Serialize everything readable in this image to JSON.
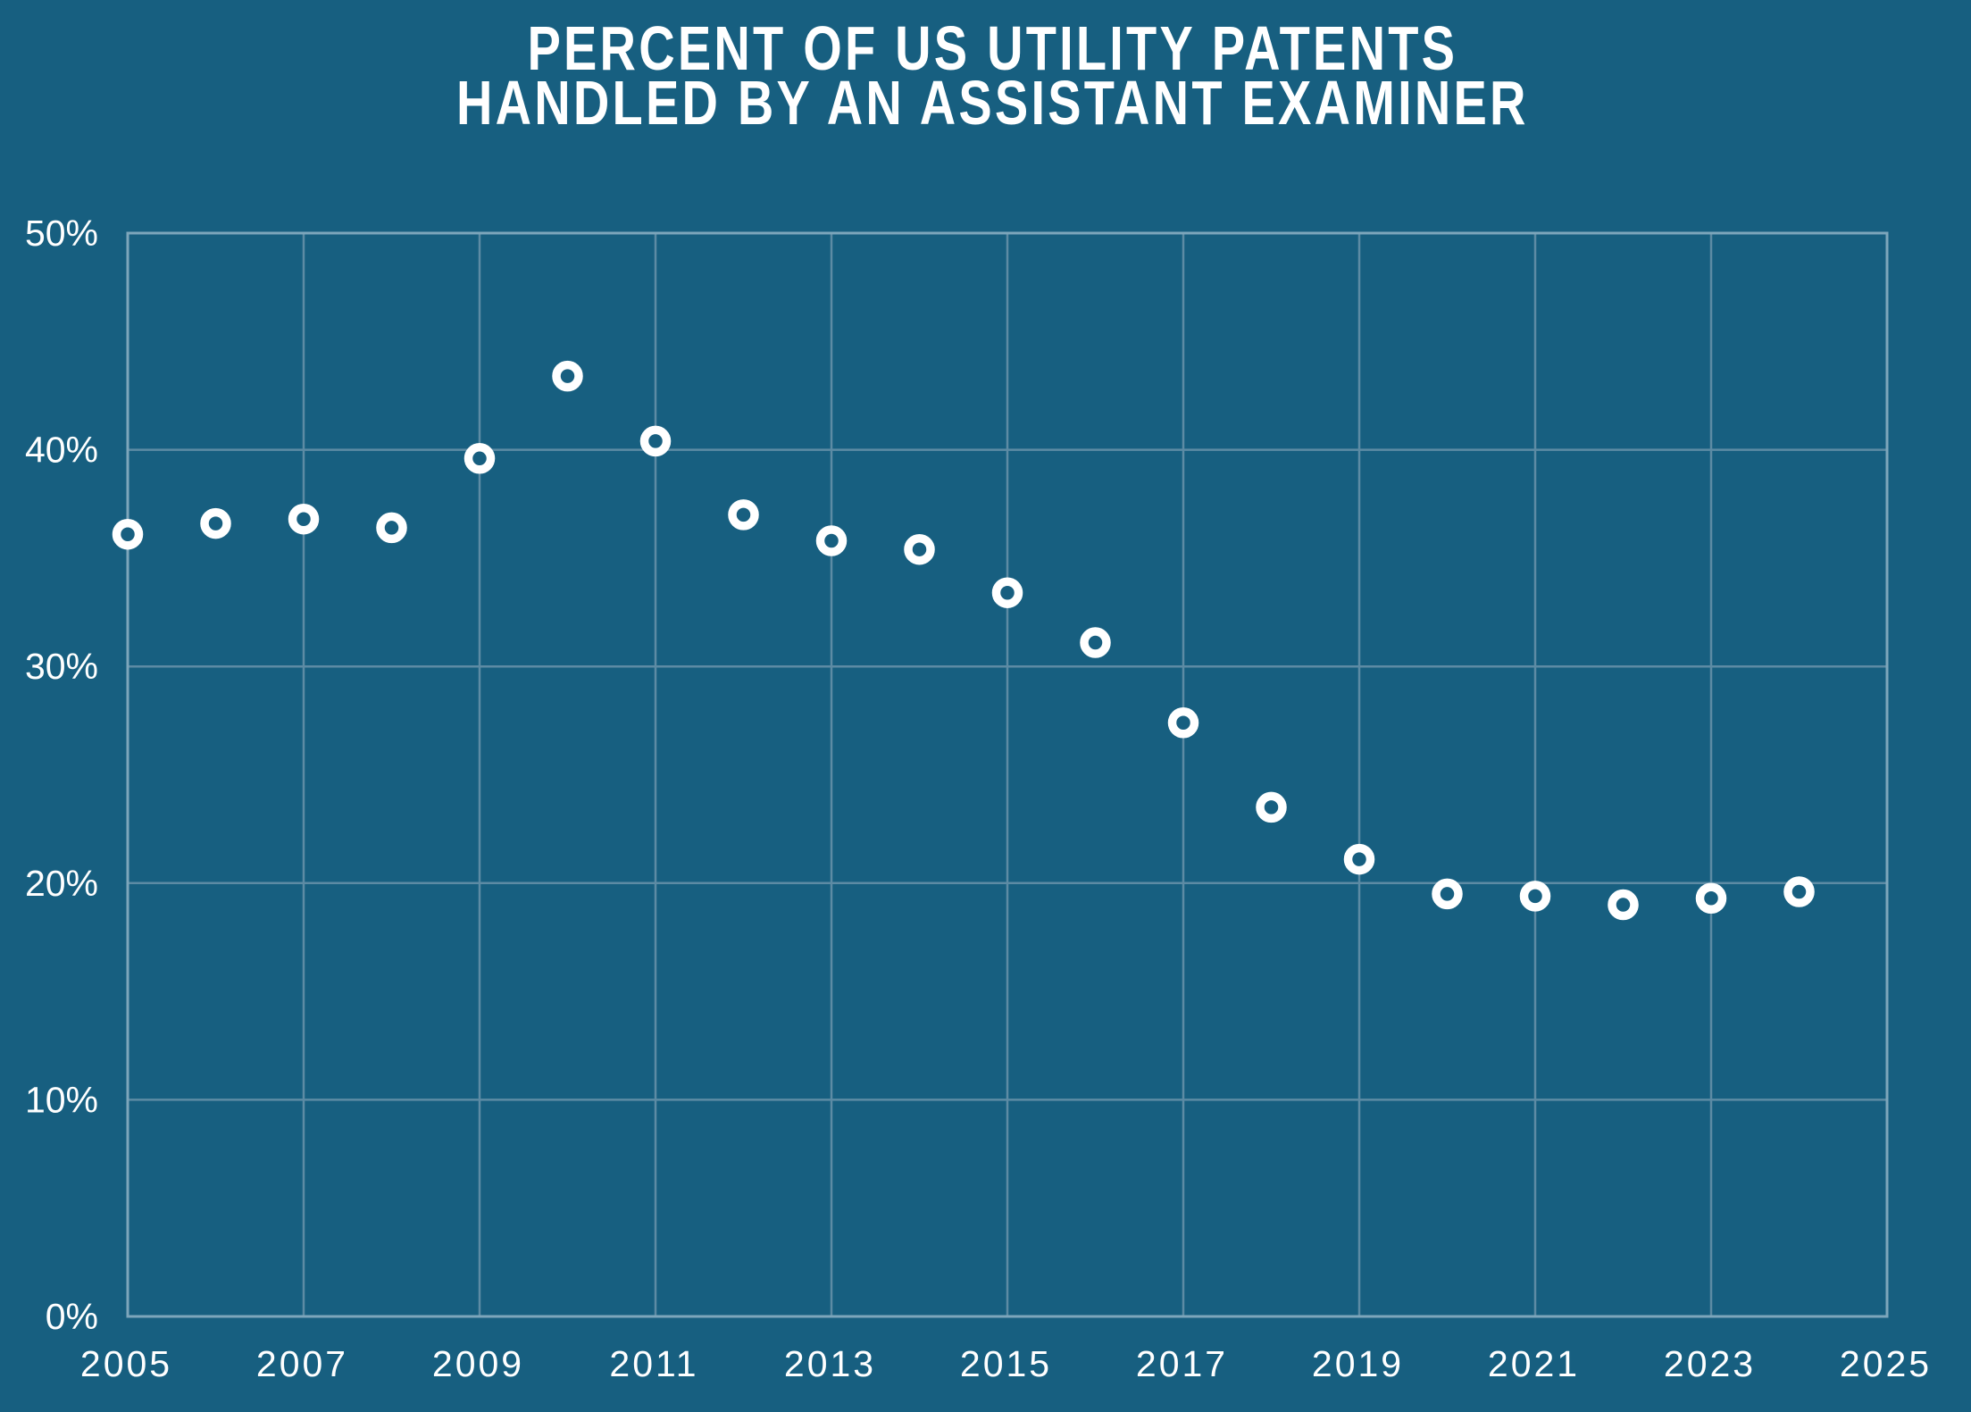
{
  "title": {
    "line1": "PERCENT OF US UTILITY PATENTS",
    "line2": "HANDLED BY AN ASSISTANT EXAMINER"
  },
  "colors": {
    "background": "#175f80",
    "gridline": "#5d8ba4",
    "border": "#7da6bb",
    "text": "#ffffff",
    "marker_stroke": "#ffffff",
    "marker_fill": "#175f80"
  },
  "chart_data": {
    "type": "scatter",
    "title": "PERCENT OF US UTILITY PATENTS HANDLED BY AN ASSISTANT EXAMINER",
    "xlabel": "",
    "ylabel": "",
    "x": [
      2005,
      2006,
      2007,
      2008,
      2009,
      2010,
      2011,
      2012,
      2013,
      2014,
      2015,
      2016,
      2017,
      2018,
      2019,
      2020,
      2021,
      2022,
      2023,
      2024
    ],
    "values": [
      36.1,
      36.6,
      36.8,
      36.4,
      39.6,
      43.4,
      40.4,
      37.0,
      35.8,
      35.4,
      33.4,
      31.1,
      27.4,
      23.5,
      21.1,
      19.5,
      19.4,
      19.0,
      19.3,
      19.6
    ],
    "xlim": [
      2005,
      2025
    ],
    "ylim": [
      0,
      50
    ],
    "x_ticks": [
      2005,
      2007,
      2009,
      2011,
      2013,
      2015,
      2017,
      2019,
      2021,
      2023,
      2025
    ],
    "y_ticks": [
      0,
      10,
      20,
      30,
      40,
      50
    ],
    "x_tick_labels": [
      "2005",
      "2007",
      "2009",
      "2011",
      "2013",
      "2015",
      "2017",
      "2019",
      "2021",
      "2023",
      "2025"
    ],
    "y_tick_labels": [
      "0%",
      "10%",
      "20%",
      "30%",
      "40%",
      "50%"
    ],
    "grid": true,
    "legend": "none",
    "marker": "open-circle"
  }
}
